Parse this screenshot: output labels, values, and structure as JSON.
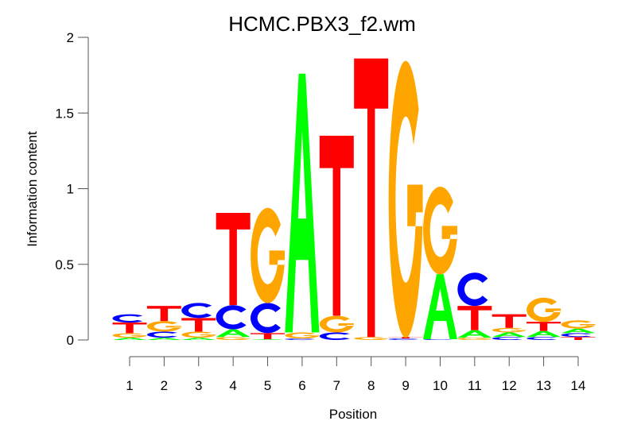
{
  "chart_data": {
    "type": "sequence-logo",
    "title": "HCMC.PBX3_f2.wm",
    "xlabel": "Position",
    "ylabel": "Information content",
    "ylim": [
      0,
      2
    ],
    "yticks": [
      "0",
      "0.5",
      "1",
      "1.5",
      "2"
    ],
    "ytick_values": [
      0,
      0.5,
      1,
      1.5,
      2
    ],
    "categories": [
      "1",
      "2",
      "3",
      "4",
      "5",
      "6",
      "7",
      "8",
      "9",
      "10",
      "11",
      "12",
      "13",
      "14"
    ],
    "colors": {
      "A": "#00ff00",
      "C": "#0000ff",
      "G": "#ffa500",
      "T": "#ff0000"
    },
    "stacks": [
      [
        [
          "A",
          0.015
        ],
        [
          "G",
          0.03
        ],
        [
          "T",
          0.07
        ],
        [
          "C",
          0.055
        ]
      ],
      [
        [
          "A",
          0.015
        ],
        [
          "C",
          0.04
        ],
        [
          "G",
          0.07
        ],
        [
          "T",
          0.1
        ]
      ],
      [
        [
          "A",
          0.015
        ],
        [
          "G",
          0.04
        ],
        [
          "T",
          0.09
        ],
        [
          "C",
          0.1
        ]
      ],
      [
        [
          "G",
          0.02
        ],
        [
          "A",
          0.05
        ],
        [
          "C",
          0.16
        ],
        [
          "T",
          0.61
        ]
      ],
      [
        [
          "A",
          0.005
        ],
        [
          "T",
          0.04
        ],
        [
          "C",
          0.2
        ],
        [
          "G",
          0.63
        ]
      ],
      [
        [
          "C",
          0.01
        ],
        [
          "G",
          0.04
        ],
        [
          "A",
          1.71
        ]
      ],
      [
        [
          "C",
          0.05
        ],
        [
          "G",
          0.11
        ],
        [
          "T",
          1.19
        ]
      ],
      [
        [
          "G",
          0.02
        ],
        [
          "T",
          1.84
        ]
      ],
      [
        [
          "C",
          0.01
        ],
        [
          "T",
          0.01
        ],
        [
          "G",
          1.83
        ]
      ],
      [
        [
          "C",
          0.005
        ],
        [
          "A",
          0.43
        ],
        [
          "G",
          0.58
        ]
      ],
      [
        [
          "G",
          0.015
        ],
        [
          "A",
          0.05
        ],
        [
          "T",
          0.16
        ],
        [
          "C",
          0.22
        ]
      ],
      [
        [
          "C",
          0.02
        ],
        [
          "A",
          0.03
        ],
        [
          "G",
          0.03
        ],
        [
          "T",
          0.09
        ]
      ],
      [
        [
          "C",
          0.02
        ],
        [
          "A",
          0.04
        ],
        [
          "T",
          0.06
        ],
        [
          "G",
          0.16
        ]
      ],
      [
        [
          "T",
          0.02
        ],
        [
          "C",
          0.025
        ],
        [
          "A",
          0.03
        ],
        [
          "G",
          0.055
        ]
      ]
    ]
  }
}
